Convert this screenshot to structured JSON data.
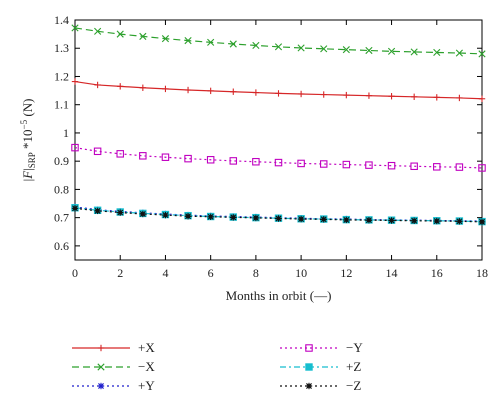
{
  "chart_data": {
    "type": "line",
    "xlabel": "Months in orbit (—)",
    "ylabel": "|F|SRP *10−5 (N)",
    "ylabel_parts": {
      "main": "|",
      "F": "F",
      "bar": "|",
      "sub": "SRP",
      "mult": " *10",
      "sup": "−5",
      "unit": " (N)"
    },
    "xlim": [
      0,
      18
    ],
    "ylim": [
      0.55,
      1.4
    ],
    "xticks": [
      0,
      2,
      4,
      6,
      8,
      10,
      12,
      14,
      16,
      18
    ],
    "yticks": [
      0.6,
      0.7,
      0.8,
      0.9,
      1,
      1.1,
      1.2,
      1.3,
      1.4
    ],
    "x": [
      0,
      1,
      2,
      3,
      4,
      5,
      6,
      7,
      8,
      9,
      10,
      11,
      12,
      13,
      14,
      15,
      16,
      17,
      18
    ],
    "series": [
      {
        "name": "+X",
        "color": "#d62728",
        "dash": "solid",
        "marker": "plus",
        "values": [
          1.182,
          1.17,
          1.165,
          1.16,
          1.156,
          1.152,
          1.149,
          1.146,
          1.143,
          1.14,
          1.138,
          1.136,
          1.134,
          1.132,
          1.13,
          1.128,
          1.126,
          1.124,
          1.121
        ]
      },
      {
        "name": "−X",
        "color": "#2ca02c",
        "dash": "dashed",
        "marker": "x",
        "values": [
          1.372,
          1.36,
          1.35,
          1.342,
          1.334,
          1.327,
          1.321,
          1.315,
          1.31,
          1.305,
          1.301,
          1.298,
          1.295,
          1.292,
          1.289,
          1.287,
          1.285,
          1.283,
          1.28
        ]
      },
      {
        "name": "+Y",
        "color": "#1f1fcc",
        "dash": "dotted",
        "marker": "star",
        "values": [
          0.738,
          0.728,
          0.722,
          0.717,
          0.713,
          0.709,
          0.706,
          0.704,
          0.702,
          0.7,
          0.698,
          0.696,
          0.695,
          0.693,
          0.692,
          0.691,
          0.69,
          0.689,
          0.688
        ]
      },
      {
        "name": "−Y",
        "color": "#c000c0",
        "dash": "dotted",
        "marker": "square",
        "values": [
          0.948,
          0.935,
          0.926,
          0.919,
          0.914,
          0.909,
          0.905,
          0.901,
          0.898,
          0.895,
          0.892,
          0.89,
          0.888,
          0.886,
          0.884,
          0.882,
          0.88,
          0.879,
          0.876
        ]
      },
      {
        "name": "+Z",
        "color": "#17becf",
        "dash": "dashdot",
        "marker": "filled-square",
        "values": [
          0.735,
          0.726,
          0.72,
          0.715,
          0.711,
          0.707,
          0.704,
          0.702,
          0.7,
          0.698,
          0.696,
          0.695,
          0.693,
          0.692,
          0.691,
          0.69,
          0.689,
          0.688,
          0.686
        ]
      },
      {
        "name": "−Z",
        "color": "#111111",
        "dash": "dotted",
        "marker": "asterisk",
        "values": [
          0.733,
          0.724,
          0.718,
          0.713,
          0.709,
          0.705,
          0.703,
          0.701,
          0.699,
          0.697,
          0.695,
          0.694,
          0.692,
          0.691,
          0.69,
          0.689,
          0.688,
          0.687,
          0.685
        ]
      }
    ],
    "legend": {
      "placement": "bottom",
      "columns": 2,
      "order": [
        0,
        3,
        1,
        4,
        2,
        5
      ]
    }
  }
}
